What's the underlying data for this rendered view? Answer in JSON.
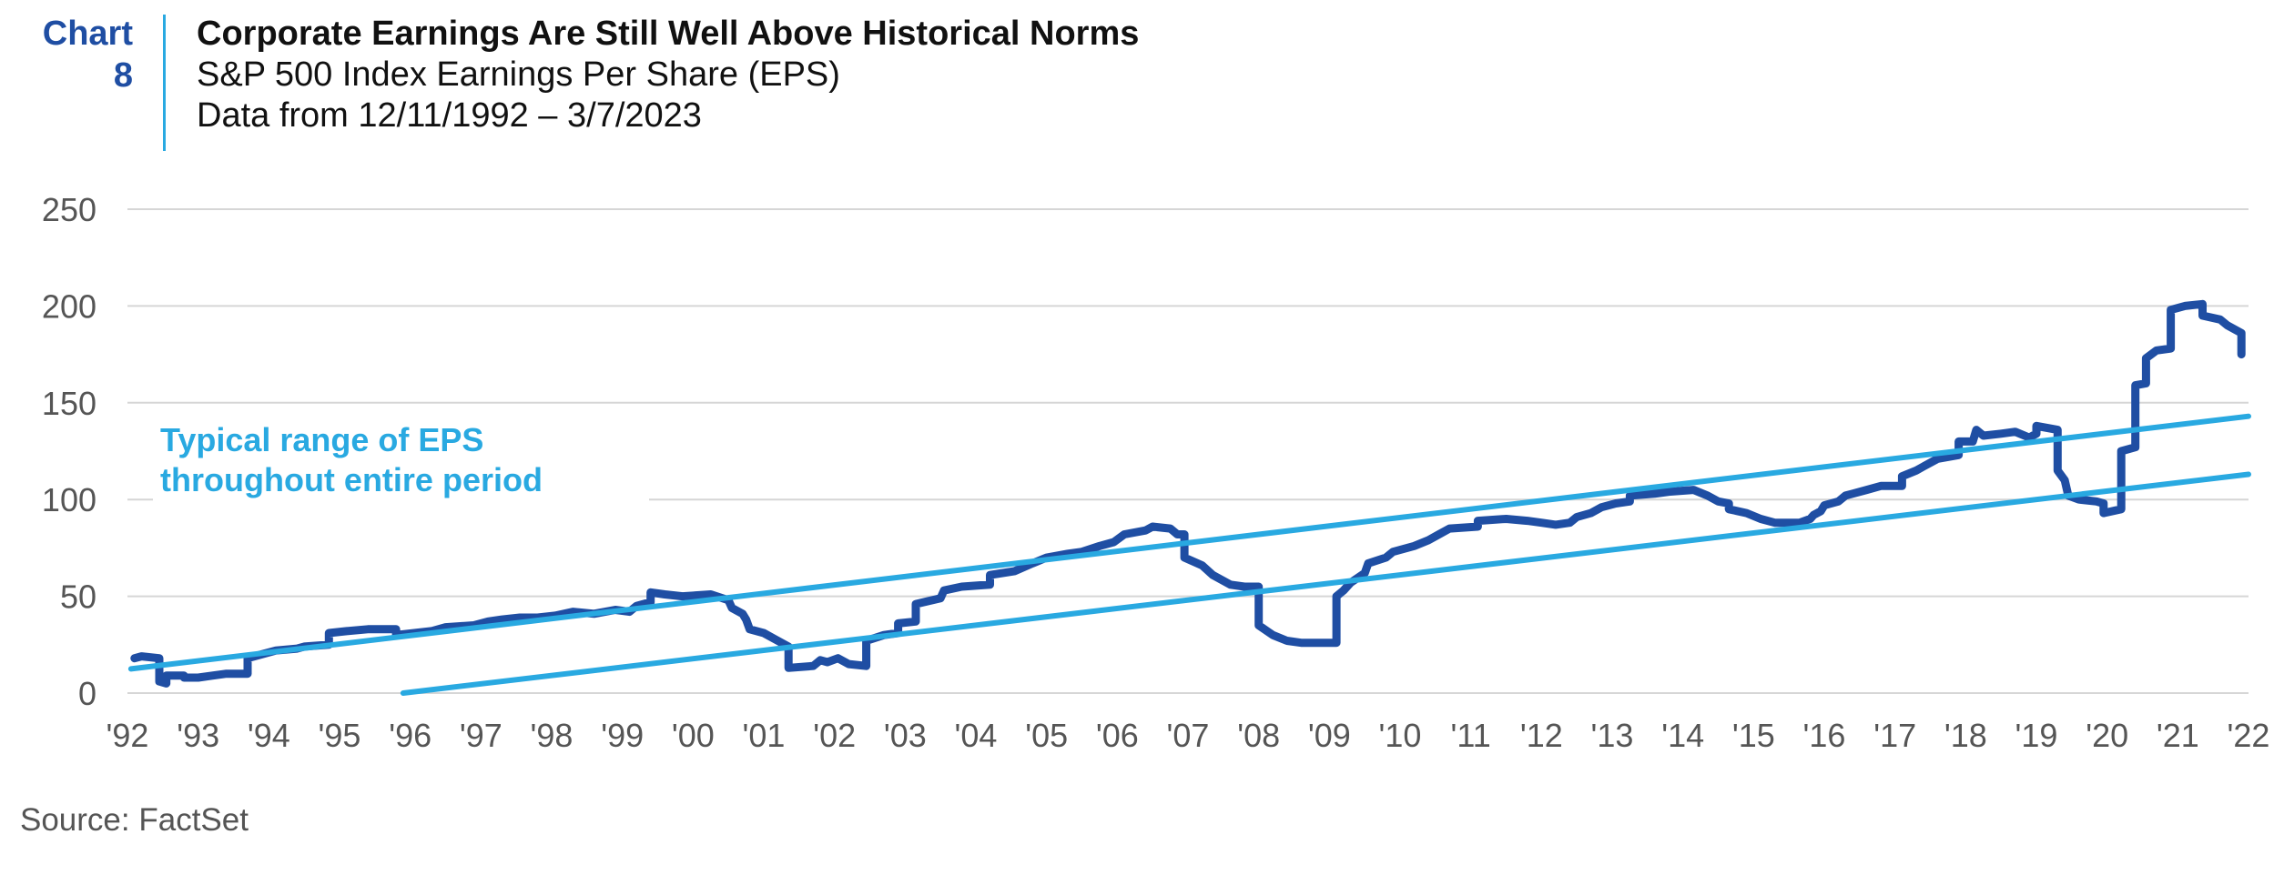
{
  "badge": {
    "word": "Chart",
    "number": "8"
  },
  "header": {
    "title": "Corporate Earnings Are Still Well Above Historical Norms",
    "subtitle": "S&P 500 Index Earnings Per Share (EPS)",
    "date_range": "Data from 12/11/1992 – 3/7/2023"
  },
  "source": "Source: FactSet",
  "colors": {
    "series": "#1f4ea3",
    "trend": "#29a9e1",
    "grid": "#d6d6d6",
    "tick": "#555555",
    "badge": "#1f4ea3"
  },
  "chart_data": {
    "type": "line",
    "title": "Corporate Earnings Are Still Well Above Historical Norms",
    "subtitle": "S&P 500 Index Earnings Per Share (EPS)",
    "xlabel": "",
    "ylabel": "",
    "xlim": [
      1992,
      2022
    ],
    "ylim": [
      0,
      250
    ],
    "grid": true,
    "x_tick_labels": [
      "'92",
      "'93",
      "'94",
      "'95",
      "'96",
      "'97",
      "'98",
      "'99",
      "'00",
      "'01",
      "'02",
      "'03",
      "'04",
      "'05",
      "'06",
      "'07",
      "'08",
      "'09",
      "'10",
      "'11",
      "'12",
      "'13",
      "'14",
      "'15",
      "'16",
      "'17",
      "'18",
      "'19",
      "'20",
      "'21",
      "'22"
    ],
    "y_ticks": [
      0,
      50,
      100,
      150,
      200,
      250
    ],
    "annotation": "Typical range of EPS throughout entire period",
    "series": [
      {
        "style": "step",
        "points": [
          [
            1992.1,
            18
          ],
          [
            1992.2,
            19
          ],
          [
            1992.45,
            18
          ],
          [
            1992.45,
            6
          ],
          [
            1992.55,
            5
          ],
          [
            1992.55,
            9
          ],
          [
            1992.8,
            9
          ],
          [
            1992.8,
            8
          ],
          [
            1993.0,
            8
          ],
          [
            1993.2,
            9
          ],
          [
            1993.4,
            10
          ],
          [
            1993.7,
            10
          ],
          [
            1993.7,
            18
          ],
          [
            1993.9,
            20
          ],
          [
            1994.1,
            22
          ],
          [
            1994.4,
            23
          ],
          [
            1994.5,
            24
          ],
          [
            1994.85,
            25
          ],
          [
            1994.85,
            31
          ],
          [
            1995.1,
            32
          ],
          [
            1995.4,
            33
          ],
          [
            1995.8,
            33
          ],
          [
            1995.8,
            30
          ],
          [
            1996.3,
            32
          ],
          [
            1996.5,
            34
          ],
          [
            1996.9,
            35
          ],
          [
            1997.1,
            37
          ],
          [
            1997.3,
            38
          ],
          [
            1997.55,
            39
          ],
          [
            1997.8,
            39
          ],
          [
            1998.05,
            40
          ],
          [
            1998.3,
            42
          ],
          [
            1998.6,
            41
          ],
          [
            1998.9,
            43
          ],
          [
            1999.1,
            42
          ],
          [
            1999.2,
            45
          ],
          [
            1999.4,
            47
          ],
          [
            1999.4,
            52
          ],
          [
            1999.6,
            51
          ],
          [
            1999.85,
            50
          ],
          [
            2000.25,
            51
          ],
          [
            2000.5,
            48
          ],
          [
            2000.55,
            44
          ],
          [
            2000.7,
            41
          ],
          [
            2000.75,
            38
          ],
          [
            2000.8,
            33
          ],
          [
            2001.0,
            31
          ],
          [
            2001.15,
            28
          ],
          [
            2001.35,
            24
          ],
          [
            2001.35,
            13
          ],
          [
            2001.7,
            14
          ],
          [
            2001.8,
            17
          ],
          [
            2001.9,
            16
          ],
          [
            2002.05,
            18
          ],
          [
            2002.2,
            15
          ],
          [
            2002.45,
            14
          ],
          [
            2002.45,
            27
          ],
          [
            2002.7,
            30
          ],
          [
            2002.9,
            31
          ],
          [
            2002.9,
            36
          ],
          [
            2003.15,
            37
          ],
          [
            2003.15,
            46
          ],
          [
            2003.5,
            49
          ],
          [
            2003.55,
            53
          ],
          [
            2003.8,
            55
          ],
          [
            2004.2,
            56
          ],
          [
            2004.2,
            61
          ],
          [
            2004.55,
            63
          ],
          [
            2004.8,
            67
          ],
          [
            2005.0,
            70
          ],
          [
            2005.3,
            72
          ],
          [
            2005.5,
            73
          ],
          [
            2005.75,
            76
          ],
          [
            2005.95,
            78
          ],
          [
            2006.1,
            82
          ],
          [
            2006.4,
            84
          ],
          [
            2006.5,
            86
          ],
          [
            2006.75,
            85
          ],
          [
            2006.85,
            82
          ],
          [
            2006.95,
            82
          ],
          [
            2006.95,
            70
          ],
          [
            2007.2,
            66
          ],
          [
            2007.35,
            61
          ],
          [
            2007.6,
            56
          ],
          [
            2007.8,
            55
          ],
          [
            2008.0,
            55
          ],
          [
            2008.0,
            35
          ],
          [
            2008.2,
            30
          ],
          [
            2008.4,
            27
          ],
          [
            2008.6,
            26
          ],
          [
            2009.1,
            26
          ],
          [
            2009.1,
            50
          ],
          [
            2009.2,
            53
          ],
          [
            2009.3,
            57
          ],
          [
            2009.5,
            62
          ],
          [
            2009.55,
            67
          ],
          [
            2009.8,
            70
          ],
          [
            2009.9,
            73
          ],
          [
            2010.2,
            76
          ],
          [
            2010.4,
            79
          ],
          [
            2010.55,
            82
          ],
          [
            2010.7,
            85
          ],
          [
            2011.1,
            86
          ],
          [
            2011.1,
            89
          ],
          [
            2011.5,
            90
          ],
          [
            2011.8,
            89
          ],
          [
            2012.0,
            88
          ],
          [
            2012.2,
            87
          ],
          [
            2012.4,
            88
          ],
          [
            2012.5,
            91
          ],
          [
            2012.7,
            93
          ],
          [
            2012.85,
            96
          ],
          [
            2013.05,
            98
          ],
          [
            2013.25,
            99
          ],
          [
            2013.25,
            102
          ],
          [
            2013.6,
            103
          ],
          [
            2013.8,
            104
          ],
          [
            2014.15,
            105
          ],
          [
            2014.35,
            102
          ],
          [
            2014.5,
            99
          ],
          [
            2014.65,
            98
          ],
          [
            2014.65,
            95
          ],
          [
            2014.9,
            93
          ],
          [
            2015.1,
            90
          ],
          [
            2015.3,
            88
          ],
          [
            2015.65,
            88
          ],
          [
            2015.8,
            90
          ],
          [
            2015.85,
            92
          ],
          [
            2015.95,
            94
          ],
          [
            2016.0,
            97
          ],
          [
            2016.2,
            99
          ],
          [
            2016.3,
            102
          ],
          [
            2016.4,
            103
          ],
          [
            2016.6,
            105
          ],
          [
            2016.8,
            107
          ],
          [
            2017.1,
            107
          ],
          [
            2017.1,
            112
          ],
          [
            2017.3,
            115
          ],
          [
            2017.4,
            117
          ],
          [
            2017.6,
            121
          ],
          [
            2017.9,
            123
          ],
          [
            2017.9,
            130
          ],
          [
            2018.1,
            130
          ],
          [
            2018.15,
            136
          ],
          [
            2018.25,
            133
          ],
          [
            2018.5,
            134
          ],
          [
            2018.7,
            135
          ],
          [
            2018.9,
            132
          ],
          [
            2019.0,
            134
          ],
          [
            2019.0,
            138
          ],
          [
            2019.3,
            136
          ],
          [
            2019.3,
            115
          ],
          [
            2019.4,
            110
          ],
          [
            2019.45,
            102
          ],
          [
            2019.6,
            100
          ],
          [
            2019.85,
            99
          ],
          [
            2019.95,
            98
          ],
          [
            2019.95,
            93
          ],
          [
            2020.2,
            95
          ],
          [
            2020.2,
            125
          ],
          [
            2020.4,
            127
          ],
          [
            2020.4,
            159
          ],
          [
            2020.55,
            160
          ],
          [
            2020.55,
            173
          ],
          [
            2020.7,
            177
          ],
          [
            2020.9,
            178
          ],
          [
            2020.9,
            198
          ],
          [
            2021.1,
            200
          ],
          [
            2021.35,
            201
          ],
          [
            2021.35,
            195
          ],
          [
            2021.6,
            193
          ],
          [
            2021.7,
            190
          ],
          [
            2021.9,
            186
          ],
          [
            2021.9,
            175
          ]
        ]
      },
      {
        "style": "trend",
        "points": [
          [
            1992.05,
            12.5
          ],
          [
            2022,
            143
          ]
        ]
      },
      {
        "style": "trend",
        "points": [
          [
            1995.9,
            0
          ],
          [
            2022,
            113
          ]
        ]
      }
    ]
  }
}
